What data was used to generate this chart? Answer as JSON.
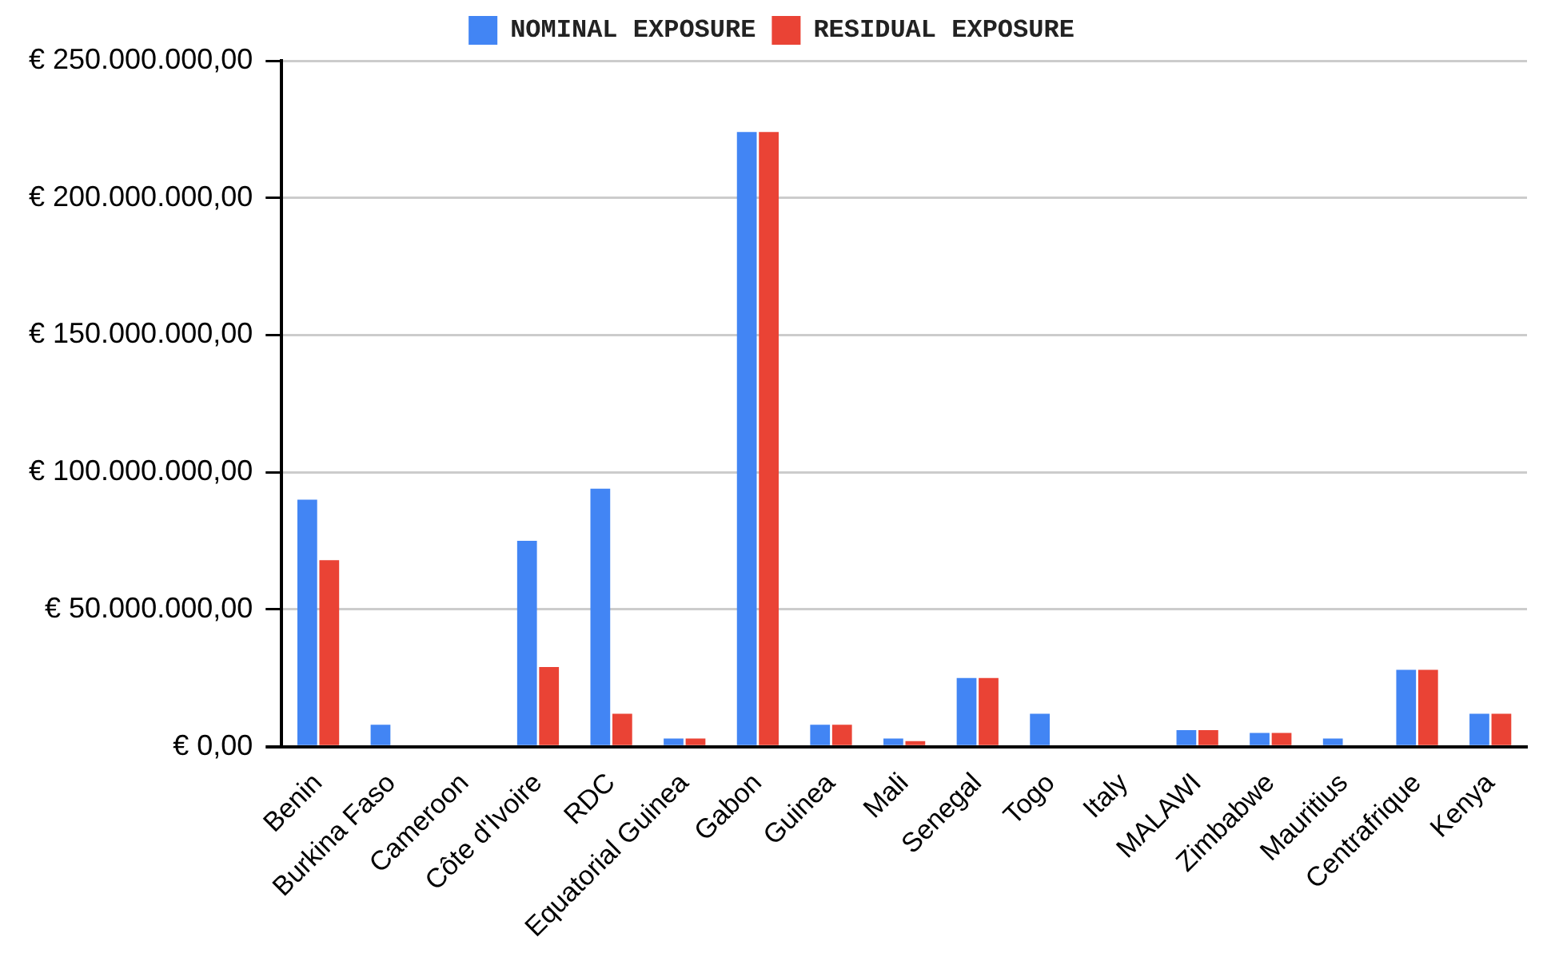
{
  "chart_data": {
    "type": "bar",
    "categories": [
      "Benin",
      "Burkina Faso",
      "Cameroon",
      "Côte d'Ivoire",
      "RDC",
      "Equatorial Guinea",
      "Gabon",
      "Guinea",
      "Mali",
      "Senegal",
      "Togo",
      "Italy",
      "MALAWI",
      "Zimbabwe",
      "Mauritius",
      "Centrafrique",
      "Kenya"
    ],
    "series": [
      {
        "name": "NOMINAL EXPOSURE",
        "color": "#4285f4",
        "values": [
          90000000,
          8000000,
          0,
          75000000,
          94000000,
          3000000,
          224000000,
          8000000,
          3000000,
          25000000,
          12000000,
          0,
          6000000,
          5000000,
          3000000,
          28000000,
          12000000
        ]
      },
      {
        "name": "RESIDUAL EXPOSURE",
        "color": "#ea4335",
        "values": [
          68000000,
          0,
          0,
          29000000,
          12000000,
          3000000,
          224000000,
          8000000,
          2000000,
          25000000,
          0,
          0,
          6000000,
          5000000,
          0,
          28000000,
          12000000
        ]
      }
    ],
    "ylim": [
      0,
      250000000
    ],
    "yticks": [
      {
        "value": 0,
        "label": "€ 0,00"
      },
      {
        "value": 50000000,
        "label": "€ 50.000.000,00"
      },
      {
        "value": 100000000,
        "label": "€ 100.000.000,00"
      },
      {
        "value": 150000000,
        "label": "€ 150.000.000,00"
      },
      {
        "value": 200000000,
        "label": "€ 200.000.000,00"
      },
      {
        "value": 250000000,
        "label": "€ 250.000.000,00"
      }
    ],
    "grid": "y",
    "legend": "top"
  }
}
